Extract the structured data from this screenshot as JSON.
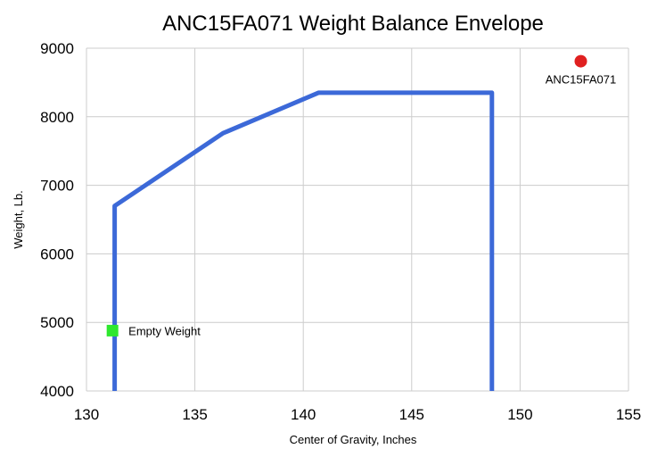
{
  "chart_data": {
    "type": "line",
    "title": "ANC15FA071 Weight Balance Envelope",
    "xlabel": "Center of Gravity, Inches",
    "ylabel": "Weight, Lb.",
    "xlim": [
      130,
      155
    ],
    "ylim": [
      4000,
      9000
    ],
    "x_ticks": [
      130,
      135,
      140,
      145,
      150,
      155
    ],
    "y_ticks": [
      4000,
      5000,
      6000,
      7000,
      8000,
      9000
    ],
    "grid": true,
    "series": [
      {
        "color": "#3c69d8",
        "points": [
          {
            "x": 131.3,
            "y": 4000
          },
          {
            "x": 131.3,
            "y": 6700
          },
          {
            "x": 136.3,
            "y": 7760
          },
          {
            "x": 140.7,
            "y": 8350
          },
          {
            "x": 148.7,
            "y": 8350
          },
          {
            "x": 148.7,
            "y": 4000
          }
        ]
      }
    ],
    "annotations": [
      {
        "label": "Empty Weight",
        "x": 131.2,
        "y": 4880,
        "marker": "square",
        "color": "#2ee82e"
      },
      {
        "label": "ANC15FA071",
        "x": 152.8,
        "y": 8810,
        "marker": "circle",
        "color": "#e02020"
      }
    ]
  }
}
